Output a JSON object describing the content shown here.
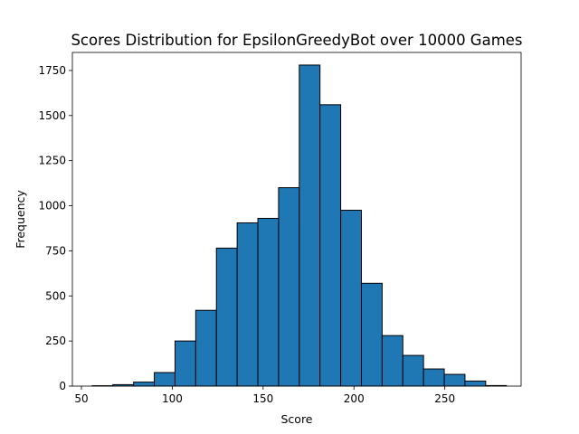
{
  "chart_data": {
    "type": "bar",
    "title": "Scores Distribution for EpsilonGreedyBot over 10000 Games",
    "xlabel": "Score",
    "ylabel": "Frequency",
    "xlim": [
      45,
      292
    ],
    "ylim": [
      0,
      1850
    ],
    "xticks": [
      50,
      100,
      150,
      200,
      250
    ],
    "yticks": [
      0,
      250,
      500,
      750,
      1000,
      1250,
      1500,
      1750
    ],
    "bin_edges": [
      55.9,
      67.3,
      78.7,
      90.1,
      101.5,
      112.9,
      124.3,
      135.7,
      147.1,
      158.5,
      169.9,
      181.3,
      192.7,
      204.1,
      215.5,
      226.9,
      238.3,
      249.7,
      261.1,
      272.5,
      283.9
    ],
    "values": [
      2,
      8,
      22,
      75,
      250,
      420,
      765,
      905,
      930,
      1100,
      1780,
      1560,
      975,
      570,
      280,
      170,
      95,
      65,
      28,
      3
    ],
    "bar_color": "#1f77b4",
    "edge_color": "#000000",
    "grid": false,
    "legend": "none"
  }
}
